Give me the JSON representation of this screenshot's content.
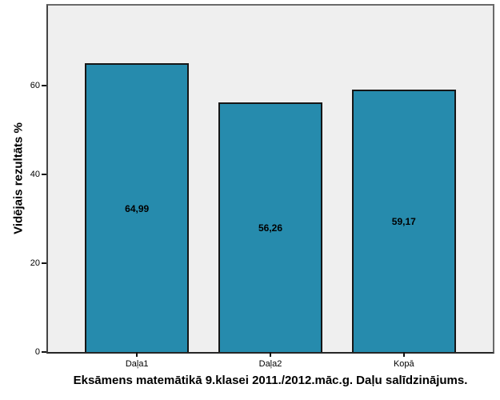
{
  "chart_data": {
    "type": "bar",
    "title": "Eksāmens matemātikā 9.klasei 2011./2012.māc.g. Daļu salīdzinājums.",
    "ylabel": "Vidējais rezultāts %",
    "xlabel": "",
    "categories": [
      "Daļa1",
      "Daļa2",
      "Kopā"
    ],
    "values": [
      64.99,
      56.26,
      59.17
    ],
    "value_labels": [
      "64,99",
      "56,26",
      "59,17"
    ],
    "y_ticks": [
      0,
      20,
      40,
      60
    ],
    "ylim": [
      0,
      78
    ],
    "grid": false,
    "legend": false,
    "colors": {
      "bar_fill": "#268bad",
      "bar_border": "#161616",
      "plot_background": "#efefef",
      "frame_border": "#6a6a6a",
      "text": "#000000"
    }
  }
}
